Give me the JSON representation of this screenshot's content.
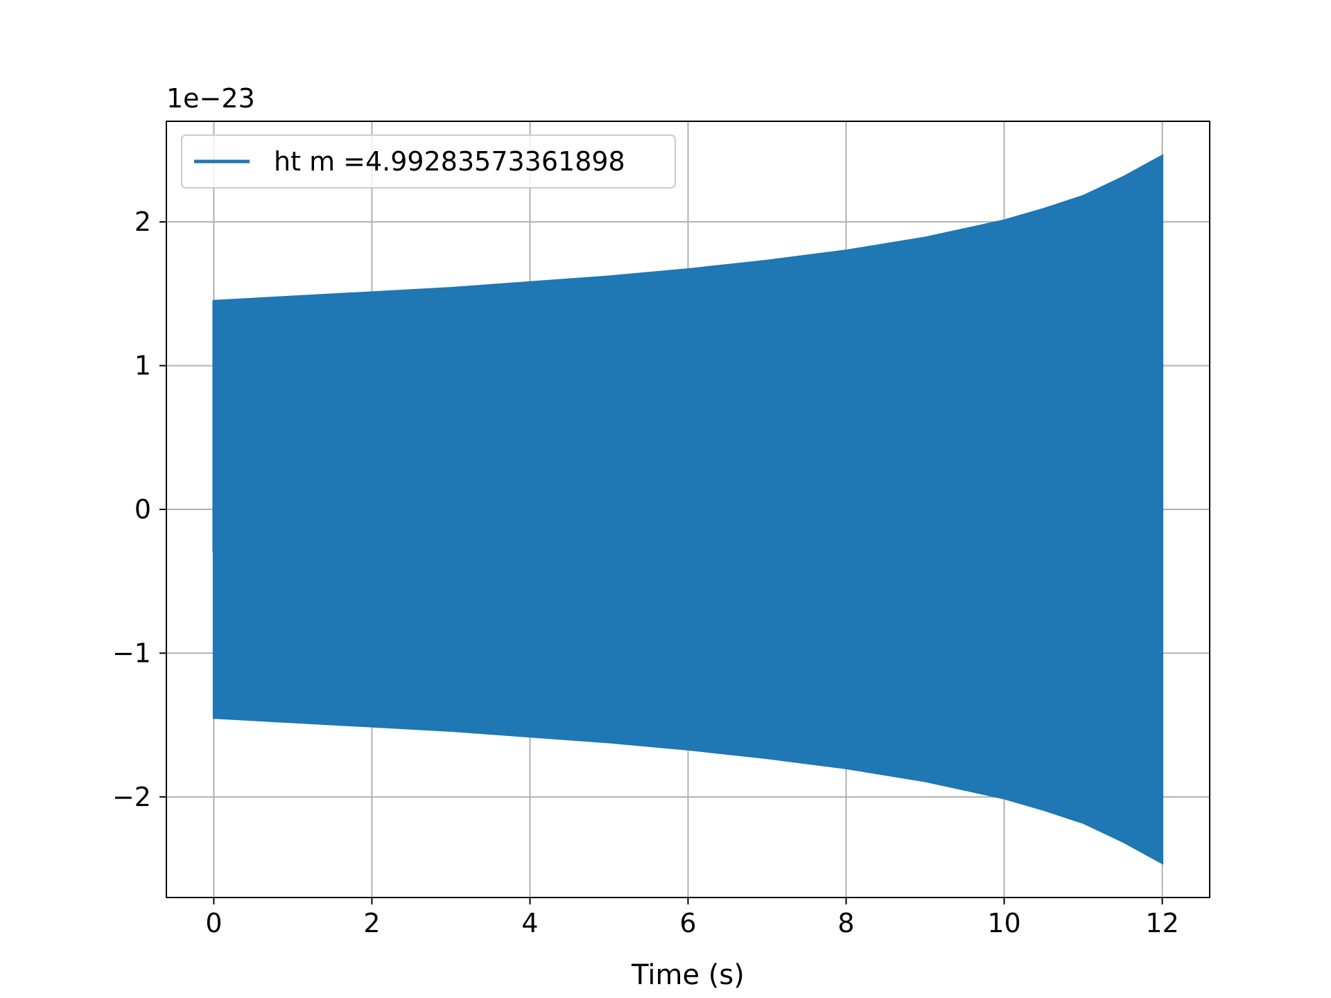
{
  "chart_data": {
    "type": "line",
    "title": "",
    "xlabel": "Time (s)",
    "ylabel": "",
    "y_offset_text": "1e−23",
    "y_scale_factor": 1e-23,
    "xlim": [
      -0.6,
      12.6
    ],
    "ylim": [
      -2.7,
      2.7
    ],
    "x_ticks": [
      0,
      2,
      4,
      6,
      8,
      10,
      12
    ],
    "x_tick_labels": [
      "0",
      "2",
      "4",
      "6",
      "8",
      "10",
      "12"
    ],
    "y_ticks": [
      -2,
      -1,
      0,
      1,
      2
    ],
    "y_tick_labels": [
      "−2",
      "−1",
      "0",
      "1",
      "2"
    ],
    "grid": true,
    "legend_position": "upper-left",
    "series": [
      {
        "name": "ht m =4.99283573361898",
        "color": "#1f77b4",
        "description_fill": "dense oscillation filling envelope",
        "x_range": [
          0,
          12
        ],
        "envelope_x": [
          0,
          1,
          2,
          3,
          4,
          5,
          6,
          7,
          8,
          9,
          10,
          10.5,
          11,
          11.5,
          12
        ],
        "envelope_upper": [
          1.45,
          1.48,
          1.51,
          1.54,
          1.58,
          1.62,
          1.67,
          1.73,
          1.8,
          1.89,
          2.01,
          2.09,
          2.18,
          2.31,
          2.46
        ],
        "envelope_lower": [
          -1.45,
          -1.48,
          -1.51,
          -1.54,
          -1.58,
          -1.62,
          -1.67,
          -1.73,
          -1.8,
          -1.89,
          -2.01,
          -2.09,
          -2.18,
          -2.31,
          -2.46
        ],
        "start_value": -0.3
      }
    ]
  }
}
